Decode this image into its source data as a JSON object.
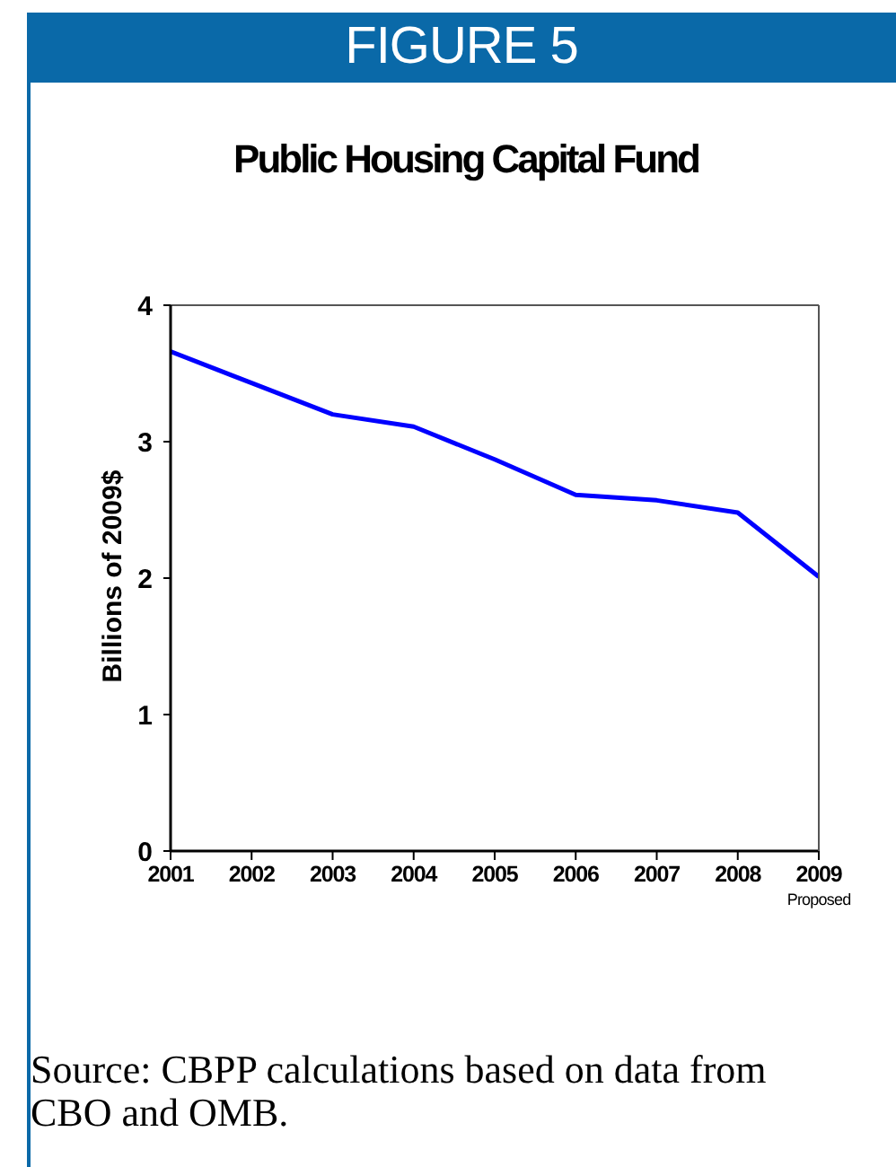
{
  "chart_data": {
    "type": "line",
    "title": "Public Housing Capital Fund",
    "ylabel": "Billions of 2009$",
    "annotations": [
      "FIGURE 5",
      "Source: CBPP calculations based on data from CBO and OMB."
    ],
    "categories": [
      "2001",
      "2002",
      "2003",
      "2004",
      "2005",
      "2006",
      "2007",
      "2008",
      "2009\nProposed"
    ],
    "series": [
      {
        "color": "#0000ff",
        "values": [
          3.66,
          3.43,
          3.2,
          3.11,
          2.87,
          2.61,
          2.57,
          2.48,
          2.01
        ]
      }
    ],
    "ylim": [
      0,
      4
    ],
    "yticks": [
      0,
      1,
      2,
      3,
      4
    ],
    "marker": "none",
    "line_style": "solid"
  }
}
